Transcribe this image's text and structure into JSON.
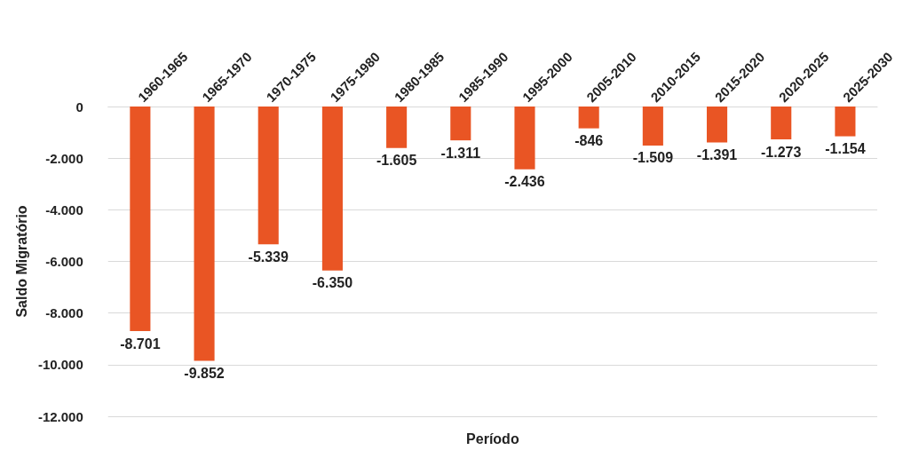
{
  "chart_data": {
    "type": "bar",
    "xlabel": "Período",
    "ylabel": "Saldo Migratório",
    "categories": [
      "1960-1965",
      "1965-1970",
      "1970-1975",
      "1975-1980",
      "1980-1985",
      "1985-1990",
      "1995-2000",
      "2005-2010",
      "2010-2015",
      "2015-2020",
      "2020-2025",
      "2025-2030"
    ],
    "values": [
      -8701,
      -9852,
      -5339,
      -6350,
      -1605,
      -1311,
      -2436,
      -846,
      -1509,
      -1391,
      -1273,
      -1154
    ],
    "value_labels": [
      "-8.701",
      "-9.852",
      "-5.339",
      "-6.350",
      "-1.605",
      "-1.311",
      "-2.436",
      "-846",
      "-1.509",
      "-1.391",
      "-1.273",
      "-1.154"
    ],
    "color": "#e95524",
    "ylim": [
      -12000,
      0
    ],
    "yticks": [
      {
        "value": -12000,
        "label": "-12.000"
      },
      {
        "value": -10000,
        "label": "-10.000"
      },
      {
        "value": -8000,
        "label": "-8.000"
      },
      {
        "value": -6000,
        "label": "-6.000"
      },
      {
        "value": -4000,
        "label": "-4.000"
      },
      {
        "value": -2000,
        "label": "-2.000"
      },
      0
    ],
    "grid": "y"
  }
}
